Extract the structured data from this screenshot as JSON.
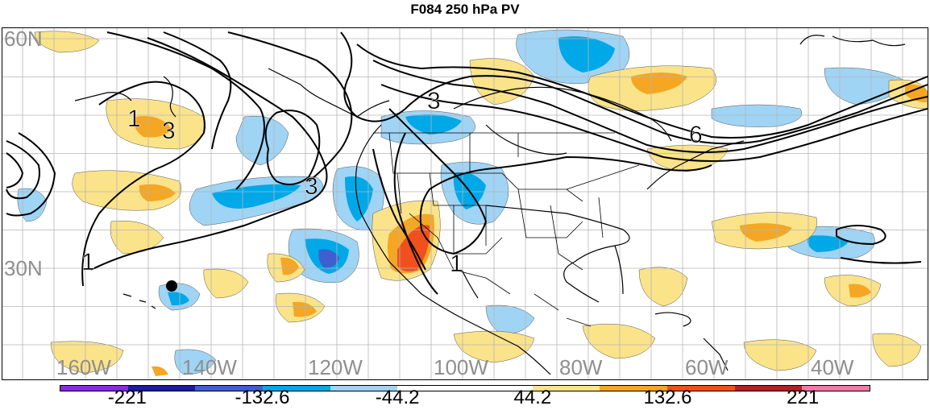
{
  "title": "F084 250 hPa PV",
  "map": {
    "lat_labels": [
      {
        "text": "60N",
        "lat": 60
      },
      {
        "text": "30N",
        "lat": 30
      }
    ],
    "lon_labels": [
      {
        "text": "160W",
        "lon": -160
      },
      {
        "text": "140W",
        "lon": -140
      },
      {
        "text": "120W",
        "lon": -120
      },
      {
        "text": "100W",
        "lon": -100
      },
      {
        "text": "80W",
        "lon": -80
      },
      {
        "text": "60W",
        "lon": -60
      },
      {
        "text": "40W",
        "lon": -40
      }
    ],
    "contour_labels": [
      "1",
      "3",
      "3",
      "3",
      "6",
      "1",
      "1"
    ],
    "marker": "station-dot"
  },
  "colorbar": {
    "colors": [
      "#8a2be2",
      "#1c1c9c",
      "#3f5fd0",
      "#00a8e8",
      "#9fd4f5",
      "#ffffff",
      "#ffffff",
      "#fbe38a",
      "#f5a623",
      "#f0501e",
      "#b22222",
      "#f07aa8"
    ],
    "labels": [
      "-221",
      "-132.6",
      "-44.2",
      "44.2",
      "132.6",
      "221"
    ]
  },
  "colors": {
    "neg_light": "#9fd4f5",
    "neg_mid": "#00a8e8",
    "neg_dark": "#3f5fd0",
    "pos_light": "#fbe38a",
    "pos_mid": "#f5a623",
    "pos_dark": "#f0501e",
    "grid": "#b5b5b5"
  }
}
